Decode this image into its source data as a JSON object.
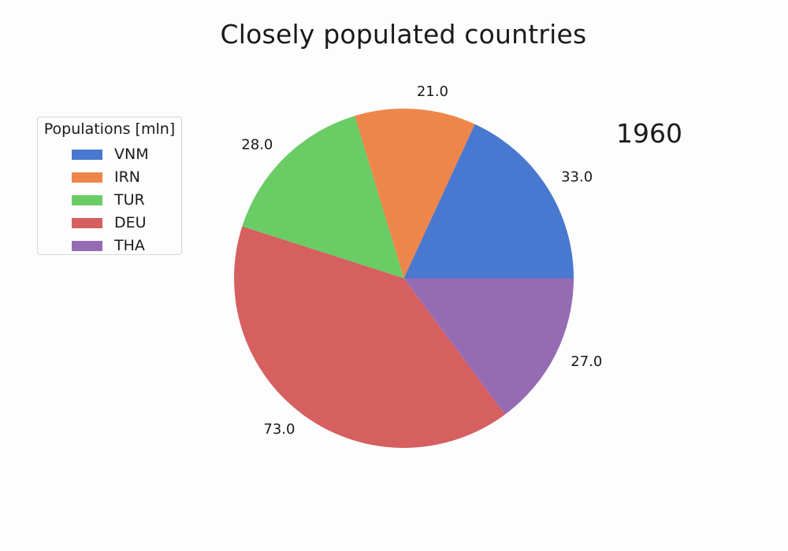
{
  "chart_data": {
    "type": "pie",
    "title": "Closely populated countries",
    "annotation": "1960",
    "legend": {
      "title": "Populations [mln]",
      "placement": "left"
    },
    "slices": [
      {
        "name": "VNM",
        "value": 33.0,
        "label": "33.0",
        "color": "#4878d0"
      },
      {
        "name": "IRN",
        "value": 21.0,
        "label": "21.0",
        "color": "#ee854a"
      },
      {
        "name": "TUR",
        "value": 28.0,
        "label": "28.0",
        "color": "#6acc64"
      },
      {
        "name": "DEU",
        "value": 73.0,
        "label": "73.0",
        "color": "#d65f5f"
      },
      {
        "name": "THA",
        "value": 27.0,
        "label": "27.0",
        "color": "#956cb4"
      }
    ]
  }
}
